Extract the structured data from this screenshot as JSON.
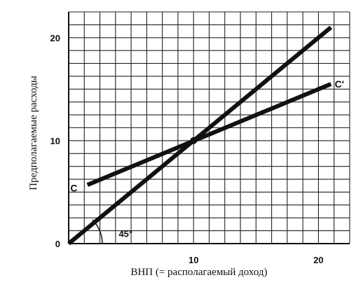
{
  "chart_data": {
    "type": "line",
    "xlabel": "ВНП (= располагаемый доход)",
    "ylabel": "Предполагаемые расходы",
    "xlim": [
      0,
      22.5
    ],
    "ylim": [
      0,
      22.5
    ],
    "x_ticks": [
      0,
      10,
      20
    ],
    "y_ticks": [
      0,
      10,
      20
    ],
    "x_tick_labels": [
      "10",
      "20"
    ],
    "y_tick_labels": [
      "0",
      "10",
      "20"
    ],
    "grid": true,
    "grid_step": 1.25,
    "series": [
      {
        "name": "",
        "x": [
          0,
          21
        ],
        "y": [
          0,
          21
        ],
        "color": "#111111"
      },
      {
        "name": "C",
        "x": [
          1.5,
          21
        ],
        "y": [
          5.7,
          15.5
        ],
        "color": "#111111"
      }
    ],
    "series_labels": [
      {
        "text": "C",
        "x": 0.7,
        "y": 5.4
      },
      {
        "text": "C'",
        "x": 21.3,
        "y": 15.5
      }
    ],
    "intersection": {
      "x": 10,
      "y": 10
    },
    "angle_annotation": {
      "text": "45°",
      "x": 3.0,
      "y": 0.5
    }
  }
}
